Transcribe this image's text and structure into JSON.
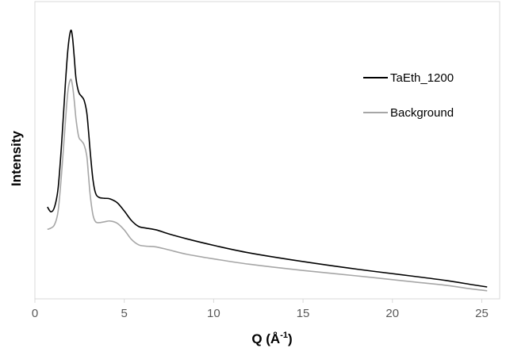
{
  "chart_data": {
    "type": "line",
    "title": "",
    "xlabel": "Q (Å",
    "xlabel_sup": "-1",
    "xlabel_close": ")",
    "ylabel": "Intensity",
    "xlim": [
      0,
      26
    ],
    "ylim": [
      0,
      1
    ],
    "xticks": [
      0,
      5,
      10,
      15,
      20,
      25
    ],
    "xtick_labels": [
      "0",
      "5",
      "10",
      "15",
      "20",
      "25"
    ],
    "yticks_shown": false,
    "grid": false,
    "legend_position": "top-right",
    "series": [
      {
        "name": "TaEth_1200",
        "color": "#000000",
        "x": [
          0.7,
          0.9,
          1.1,
          1.3,
          1.5,
          1.7,
          1.85,
          2.0,
          2.1,
          2.2,
          2.3,
          2.45,
          2.6,
          2.75,
          2.9,
          3.0,
          3.1,
          3.25,
          3.4,
          3.6,
          3.9,
          4.2,
          4.6,
          5.0,
          5.4,
          5.8,
          6.2,
          6.8,
          7.5,
          8.5,
          10,
          12,
          15,
          18,
          21,
          23,
          24.5,
          25.3
        ],
        "y": [
          0.34,
          0.322,
          0.34,
          0.41,
          0.58,
          0.79,
          0.925,
          0.992,
          0.97,
          0.895,
          0.815,
          0.765,
          0.75,
          0.735,
          0.69,
          0.62,
          0.54,
          0.44,
          0.39,
          0.375,
          0.372,
          0.37,
          0.356,
          0.325,
          0.29,
          0.268,
          0.262,
          0.255,
          0.24,
          0.222,
          0.198,
          0.17,
          0.138,
          0.11,
          0.085,
          0.068,
          0.052,
          0.044
        ]
      },
      {
        "name": "Background",
        "color": "#a6a6a6",
        "x": [
          0.7,
          0.9,
          1.1,
          1.3,
          1.5,
          1.7,
          1.85,
          2.0,
          2.1,
          2.2,
          2.3,
          2.45,
          2.6,
          2.75,
          2.9,
          3.0,
          3.1,
          3.25,
          3.4,
          3.6,
          3.9,
          4.2,
          4.6,
          5.0,
          5.4,
          5.8,
          6.2,
          6.8,
          7.5,
          8.5,
          10,
          12,
          15,
          18,
          21,
          23,
          24.5,
          25.3
        ],
        "y": [
          0.257,
          0.262,
          0.275,
          0.325,
          0.47,
          0.65,
          0.77,
          0.812,
          0.79,
          0.735,
          0.665,
          0.6,
          0.585,
          0.57,
          0.53,
          0.455,
          0.38,
          0.31,
          0.285,
          0.282,
          0.285,
          0.288,
          0.28,
          0.255,
          0.22,
          0.2,
          0.195,
          0.192,
          0.181,
          0.165,
          0.148,
          0.128,
          0.105,
          0.085,
          0.064,
          0.05,
          0.036,
          0.03
        ]
      }
    ]
  }
}
